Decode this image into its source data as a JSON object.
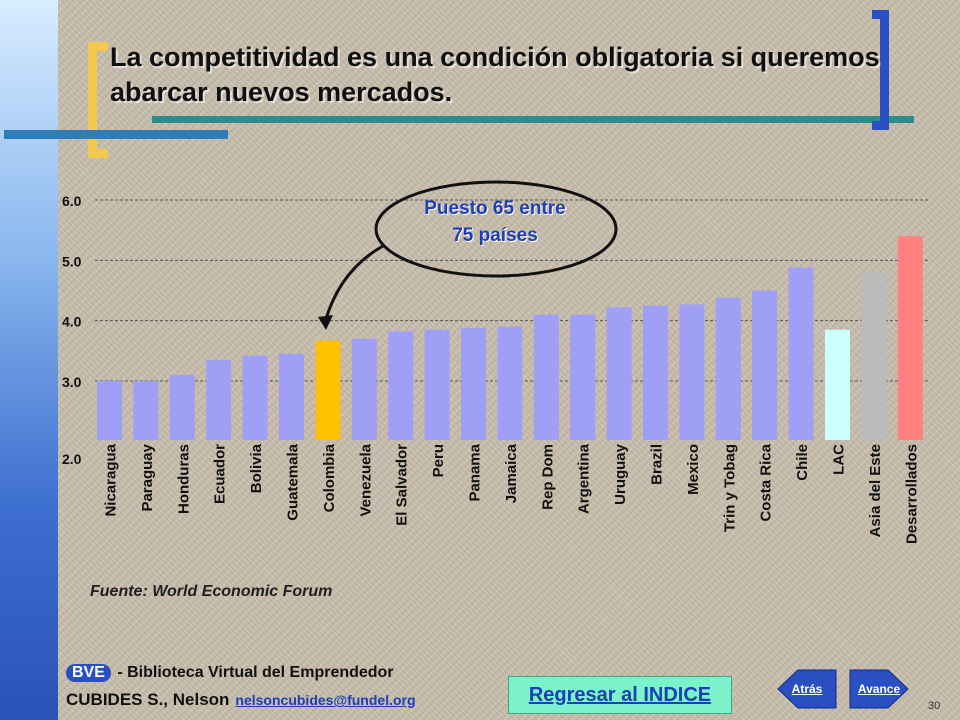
{
  "slide": {
    "title": "La competitividad es una condición obligatoria si queremos abarcar nuevos mercados.",
    "callout_line1": "Puesto 65 entre",
    "callout_line2": "75 países",
    "source": "Fuente: World Economic Forum",
    "footer_bve": "BVE",
    "footer_library": " - Biblioteca Virtual del Emprendedor",
    "footer_author": "CUBIDES S., Nelson",
    "footer_email": "nelsoncubides@fundel.org",
    "index_link": "Regresar al INDICE",
    "back_label": "Atrás",
    "next_label": "Avance",
    "page_number": "30"
  },
  "colors": {
    "bar": "#9f9ff5",
    "highlight": "#ffc000",
    "lac": "#ccffff",
    "asia": "#bbbbbb",
    "developed": "#ff8080",
    "deco_blue": "#2a4fc0",
    "deco_yellow": "#f2c94c",
    "deco_teal": "#2e8e8a"
  },
  "chart_data": {
    "type": "bar",
    "categories": [
      "Nicaragua",
      "Paraguay",
      "Honduras",
      "Ecuador",
      "Bolivia",
      "Guatemala",
      "Colombia",
      "Venezuela",
      "El Salvador",
      "Peru",
      "Panama",
      "Jamaica",
      "Rep Dom",
      "Argentina",
      "Uruguay",
      "Brazil",
      "Mexico",
      "Trin y Tobag",
      "Costa Rica",
      "Chile",
      "LAC",
      "Asia del Este",
      "Desarrollados"
    ],
    "values": [
      3.0,
      3.0,
      3.1,
      3.35,
      3.42,
      3.45,
      3.67,
      3.7,
      3.82,
      3.85,
      3.88,
      3.9,
      4.1,
      4.1,
      4.22,
      4.25,
      4.27,
      4.38,
      4.5,
      4.88,
      3.85,
      4.8,
      5.4
    ],
    "bar_colors": [
      "#9f9ff5",
      "#9f9ff5",
      "#9f9ff5",
      "#9f9ff5",
      "#9f9ff5",
      "#9f9ff5",
      "#ffc000",
      "#9f9ff5",
      "#9f9ff5",
      "#9f9ff5",
      "#9f9ff5",
      "#9f9ff5",
      "#9f9ff5",
      "#9f9ff5",
      "#9f9ff5",
      "#9f9ff5",
      "#9f9ff5",
      "#9f9ff5",
      "#9f9ff5",
      "#9f9ff5",
      "#ccffff",
      "#bbbbbb",
      "#ff8080"
    ],
    "y_ticks": [
      "2.0",
      "3.0",
      "4.0",
      "5.0",
      "6.0"
    ],
    "ylim": [
      2.0,
      6.0
    ],
    "grid": true,
    "highlight": "Colombia",
    "title": "",
    "xlabel": "",
    "ylabel": ""
  }
}
